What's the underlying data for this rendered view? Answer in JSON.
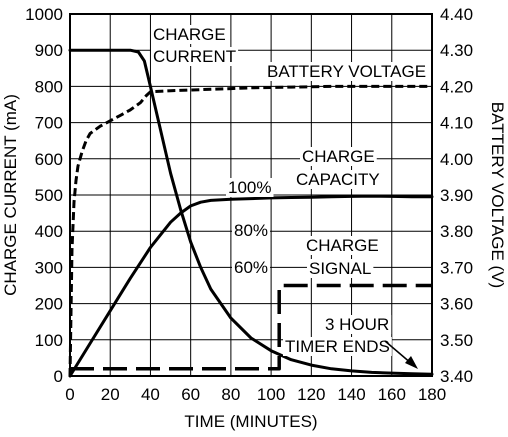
{
  "chart_data": {
    "type": "line",
    "xlabel": "TIME (MINUTES)",
    "ylabel_left": "CHARGE CURRENT (mA)",
    "ylabel_right": "BATTERY VOLTAGE (V)",
    "xlim": [
      0,
      180
    ],
    "ylim_left": [
      0,
      1000
    ],
    "ylim_right": [
      3.4,
      4.4
    ],
    "grid": true,
    "x_ticks": [
      0,
      20,
      40,
      60,
      80,
      100,
      120,
      140,
      160,
      180
    ],
    "y_left_ticks": [
      0,
      100,
      200,
      300,
      400,
      500,
      600,
      700,
      800,
      900,
      1000
    ],
    "y_right_ticks": [
      "3.40",
      "3.50",
      "3.60",
      "3.70",
      "3.80",
      "3.90",
      "4.00",
      "4.10",
      "4.20",
      "4.30",
      "4.40"
    ],
    "series": [
      {
        "name": "CHARGE CURRENT",
        "axis": "left",
        "style": "solid",
        "x": [
          0,
          1,
          10,
          20,
          30,
          34,
          37,
          40,
          45,
          50,
          55,
          60,
          65,
          70,
          80,
          90,
          100,
          110,
          120,
          130,
          140,
          150,
          160,
          170,
          180
        ],
        "y": [
          900,
          900,
          900,
          900,
          900,
          895,
          870,
          800,
          680,
          560,
          460,
          370,
          300,
          240,
          160,
          105,
          70,
          45,
          30,
          20,
          14,
          10,
          8,
          6,
          5
        ]
      },
      {
        "name": "BATTERY VOLTAGE",
        "axis": "right",
        "style": "dashed",
        "x": [
          0,
          1,
          2,
          3,
          4,
          6,
          8,
          10,
          15,
          20,
          25,
          30,
          35,
          38,
          40,
          50,
          60,
          70,
          80,
          90,
          100,
          110,
          120,
          130,
          140,
          150,
          160,
          170,
          180
        ],
        "y": [
          3.4,
          3.75,
          3.88,
          3.94,
          3.98,
          4.02,
          4.05,
          4.07,
          4.09,
          4.105,
          4.12,
          4.135,
          4.155,
          4.175,
          4.185,
          4.188,
          4.19,
          4.192,
          4.194,
          4.196,
          4.197,
          4.198,
          4.199,
          4.2,
          4.2,
          4.2,
          4.2,
          4.2,
          4.2
        ]
      },
      {
        "name": "CHARGE CAPACITY",
        "axis": "left",
        "style": "solid",
        "x": [
          0,
          10,
          20,
          30,
          40,
          45,
          50,
          55,
          60,
          65,
          70,
          80,
          90,
          100,
          110,
          120,
          130,
          140,
          150,
          160,
          170,
          180
        ],
        "y": [
          0,
          90,
          180,
          270,
          355,
          390,
          425,
          450,
          470,
          480,
          485,
          488,
          490,
          492,
          493,
          494,
          495,
          496,
          497,
          496,
          495,
          495
        ]
      },
      {
        "name": "CHARGE SIGNAL",
        "axis": "left",
        "style": "long-dashed",
        "x": [
          0,
          104,
          104,
          180
        ],
        "y": [
          20,
          20,
          250,
          250
        ]
      }
    ],
    "annotations": [
      {
        "text": "CHARGE",
        "id": "charge-current-1"
      },
      {
        "text": "CURRENT",
        "id": "charge-current-2"
      },
      {
        "text": "BATTERY VOLTAGE",
        "id": "battery-voltage"
      },
      {
        "text": "CHARGE",
        "id": "charge-capacity-1"
      },
      {
        "text": "CAPACITY",
        "id": "charge-capacity-2"
      },
      {
        "text": "100%",
        "id": "pct-100"
      },
      {
        "text": "80%",
        "id": "pct-80"
      },
      {
        "text": "60%",
        "id": "pct-60"
      },
      {
        "text": "CHARGE",
        "id": "charge-signal-1"
      },
      {
        "text": "SIGNAL",
        "id": "charge-signal-2"
      },
      {
        "text": "3 HOUR",
        "id": "timer-1"
      },
      {
        "text": "TIMER ENDS",
        "id": "timer-2"
      }
    ]
  }
}
